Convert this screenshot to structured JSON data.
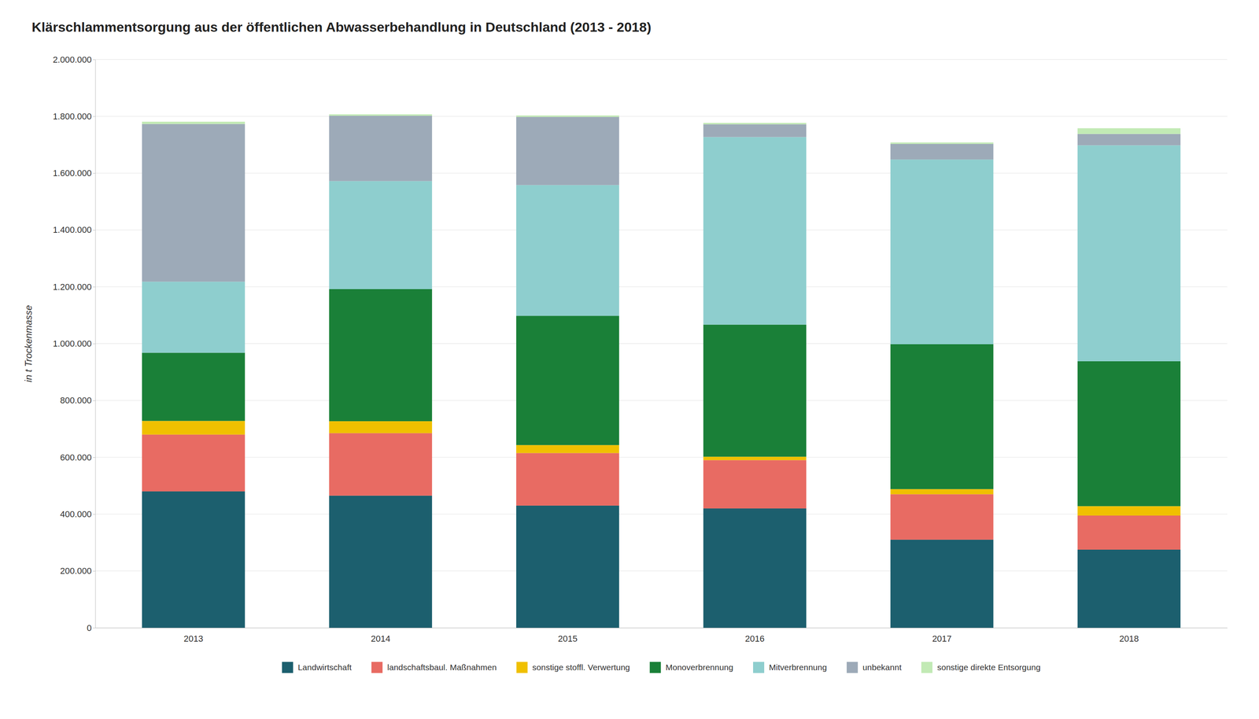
{
  "chart_data": {
    "type": "bar",
    "stacked": true,
    "title": "Klärschlammentsorgung aus der öffentlichen Abwasserbehandlung in Deutschland (2013 - 2018)",
    "ylabel": "in t Trockenmasse",
    "categories": [
      "2013",
      "2014",
      "2015",
      "2016",
      "2017",
      "2018"
    ],
    "series": [
      {
        "name": "Landwirtschaft",
        "color": "#1c5f6e",
        "values": [
          480000,
          465000,
          430000,
          420000,
          310000,
          275000
        ]
      },
      {
        "name": "landschaftsbaul. Maßnahmen",
        "color": "#e86b63",
        "values": [
          200000,
          220000,
          185000,
          170000,
          160000,
          120000
        ]
      },
      {
        "name": "sonstige stoffl. Verwertung",
        "color": "#f0c000",
        "values": [
          48000,
          42000,
          28000,
          12000,
          18000,
          33000
        ]
      },
      {
        "name": "Monoverbrennung",
        "color": "#1a8038",
        "values": [
          240000,
          465000,
          455000,
          465000,
          510000,
          510000
        ]
      },
      {
        "name": "Mitverbrennung",
        "color": "#8ecece",
        "values": [
          250000,
          380000,
          460000,
          660000,
          650000,
          760000
        ]
      },
      {
        "name": "unbekannt",
        "color": "#9daab8",
        "values": [
          555000,
          230000,
          240000,
          45000,
          55000,
          40000
        ]
      },
      {
        "name": "sonstige direkte Entsorgung",
        "color": "#c2eab5",
        "values": [
          8000,
          5000,
          5000,
          5000,
          5000,
          20000
        ]
      }
    ],
    "ylim": [
      0,
      2000000
    ],
    "yticks": [
      0,
      {
        "value": 200000,
        "label": "200.000"
      },
      {
        "value": 400000,
        "label": "400.000"
      },
      {
        "value": 600000,
        "label": "600.000"
      },
      {
        "value": 800000,
        "label": "800.000"
      },
      {
        "value": 1000000,
        "label": "1.000.000"
      },
      {
        "value": 1200000,
        "label": "1.200.000"
      },
      {
        "value": 1400000,
        "label": "1.400.000"
      },
      {
        "value": 1600000,
        "label": "1.600.000"
      },
      {
        "value": 1800000,
        "label": "1.800.000"
      },
      {
        "value": 2000000,
        "label": "2.000.000"
      }
    ],
    "grid": true,
    "legend": "bottom"
  }
}
